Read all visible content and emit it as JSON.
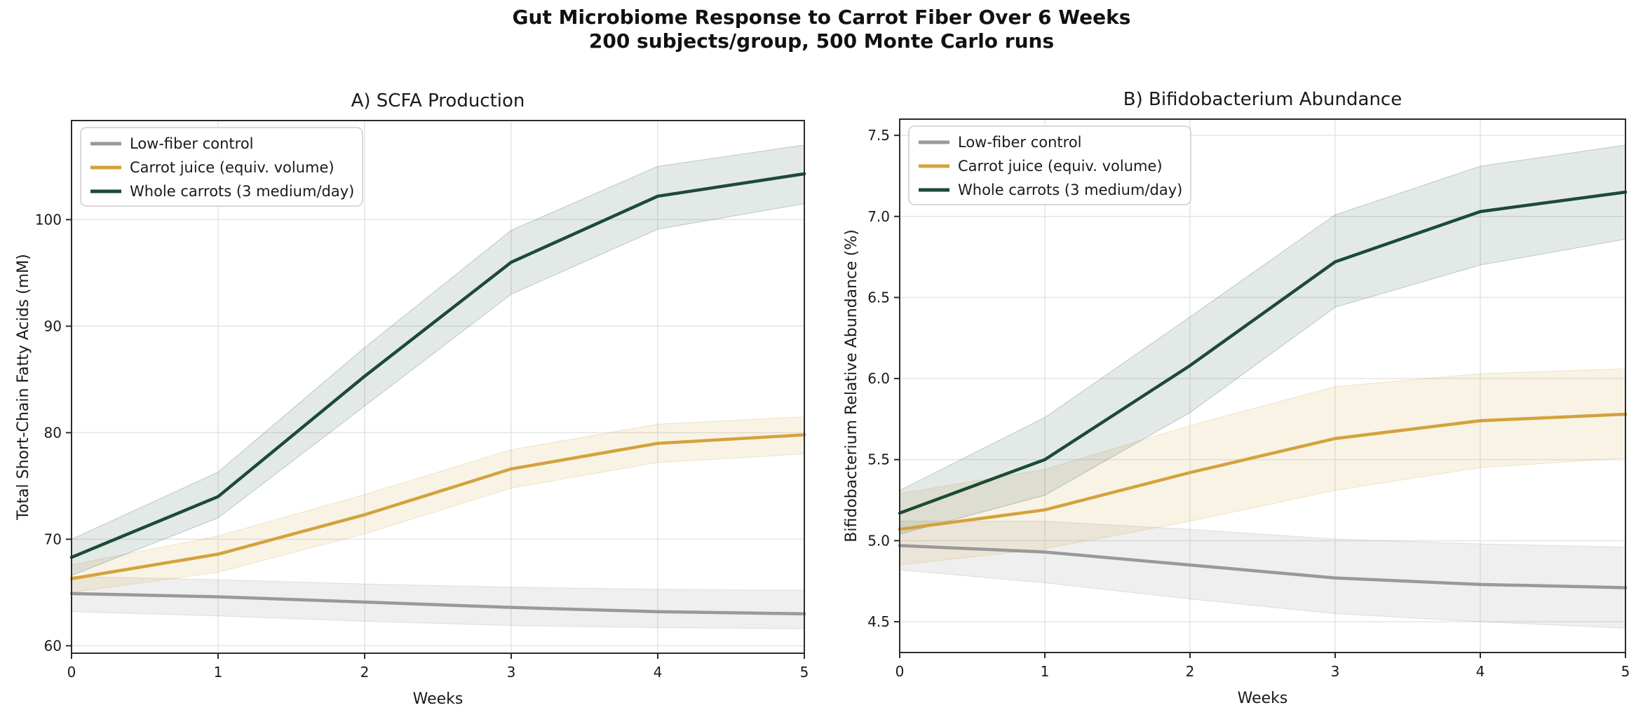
{
  "title": {
    "line1": "Gut Microbiome Response to Carrot Fiber Over 6 Weeks",
    "line2": "200 subjects/group, 500 Monte Carlo runs"
  },
  "colors": {
    "control": "#999999",
    "juice": "#d4a23c",
    "whole": "#1c4a36",
    "grid": "#e6e6e6",
    "spine": "#2b2b2b",
    "text": "#1a1a1a"
  },
  "chart_data": [
    {
      "type": "line",
      "title": "A) SCFA Production",
      "xlabel": "Weeks",
      "ylabel": "Total Short-Chain Fatty Acids (mM)",
      "x": [
        0,
        1,
        2,
        3,
        4,
        5
      ],
      "xlim": [
        0,
        5
      ],
      "ylim": [
        59.3,
        109.3
      ],
      "xticks": [
        0,
        1,
        2,
        3,
        4,
        5
      ],
      "xtick_labels": [
        "0",
        "1",
        "2",
        "3",
        "4",
        "5"
      ],
      "yticks": [
        60,
        70,
        80,
        90,
        100
      ],
      "ytick_labels": [
        "60",
        "70",
        "80",
        "90",
        "100"
      ],
      "grid": true,
      "legend_position": "upper-left",
      "series": [
        {
          "name": "Low-fiber control",
          "color": "#999999",
          "band_opacity": 0.16,
          "values": [
            64.9,
            64.6,
            64.1,
            63.6,
            63.2,
            63.0
          ],
          "band_lo": [
            63.2,
            62.8,
            62.3,
            61.9,
            61.7,
            61.6
          ],
          "band_hi": [
            66.5,
            66.2,
            65.8,
            65.5,
            65.3,
            65.2
          ]
        },
        {
          "name": "Carrot juice (equiv. volume)",
          "color": "#d4a23c",
          "band_opacity": 0.13,
          "values": [
            66.3,
            68.6,
            72.3,
            76.6,
            79.0,
            79.8
          ],
          "band_lo": [
            65.0,
            66.9,
            70.5,
            74.8,
            77.2,
            78.0
          ],
          "band_hi": [
            67.6,
            70.3,
            74.2,
            78.4,
            80.8,
            81.5
          ]
        },
        {
          "name": "Whole carrots (3 medium/day)",
          "color": "#1c4a36",
          "band_opacity": 0.12,
          "values": [
            68.3,
            74.0,
            85.3,
            96.0,
            102.2,
            104.3
          ],
          "band_lo": [
            66.6,
            72.0,
            82.5,
            93.0,
            99.1,
            101.5
          ],
          "band_hi": [
            70.0,
            76.3,
            88.0,
            99.0,
            105.0,
            107.0
          ]
        }
      ]
    },
    {
      "type": "line",
      "title": "B) Bifidobacterium Abundance",
      "xlabel": "Weeks",
      "ylabel": "Bifidobacterium Relative Abundance (%)",
      "x": [
        0,
        1,
        2,
        3,
        4,
        5
      ],
      "xlim": [
        0,
        5
      ],
      "ylim": [
        4.31,
        7.6
      ],
      "xticks": [
        0,
        1,
        2,
        3,
        4,
        5
      ],
      "xtick_labels": [
        "0",
        "1",
        "2",
        "3",
        "4",
        "5"
      ],
      "yticks": [
        4.5,
        5.0,
        5.5,
        6.0,
        6.5,
        7.0,
        7.5
      ],
      "ytick_labels": [
        "4.5",
        "5.0",
        "5.5",
        "6.0",
        "6.5",
        "7.0",
        "7.5"
      ],
      "grid": true,
      "legend_position": "upper-left",
      "series": [
        {
          "name": "Low-fiber control",
          "color": "#999999",
          "band_opacity": 0.16,
          "values": [
            4.97,
            4.93,
            4.85,
            4.77,
            4.73,
            4.71
          ],
          "band_lo": [
            4.82,
            4.74,
            4.64,
            4.55,
            4.5,
            4.46
          ],
          "band_hi": [
            5.12,
            5.12,
            5.07,
            5.01,
            4.98,
            4.96
          ]
        },
        {
          "name": "Carrot juice (equiv. volume)",
          "color": "#d4a23c",
          "band_opacity": 0.13,
          "values": [
            5.07,
            5.19,
            5.42,
            5.63,
            5.74,
            5.78
          ],
          "band_lo": [
            4.85,
            4.95,
            5.12,
            5.31,
            5.45,
            5.51
          ],
          "band_hi": [
            5.29,
            5.44,
            5.71,
            5.95,
            6.03,
            6.06
          ]
        },
        {
          "name": "Whole carrots (3 medium/day)",
          "color": "#1c4a36",
          "band_opacity": 0.12,
          "values": [
            5.17,
            5.5,
            6.08,
            6.72,
            7.03,
            7.15
          ],
          "band_lo": [
            5.04,
            5.28,
            5.79,
            6.44,
            6.7,
            6.86
          ],
          "band_hi": [
            5.31,
            5.76,
            6.38,
            7.01,
            7.31,
            7.44
          ]
        }
      ]
    }
  ]
}
